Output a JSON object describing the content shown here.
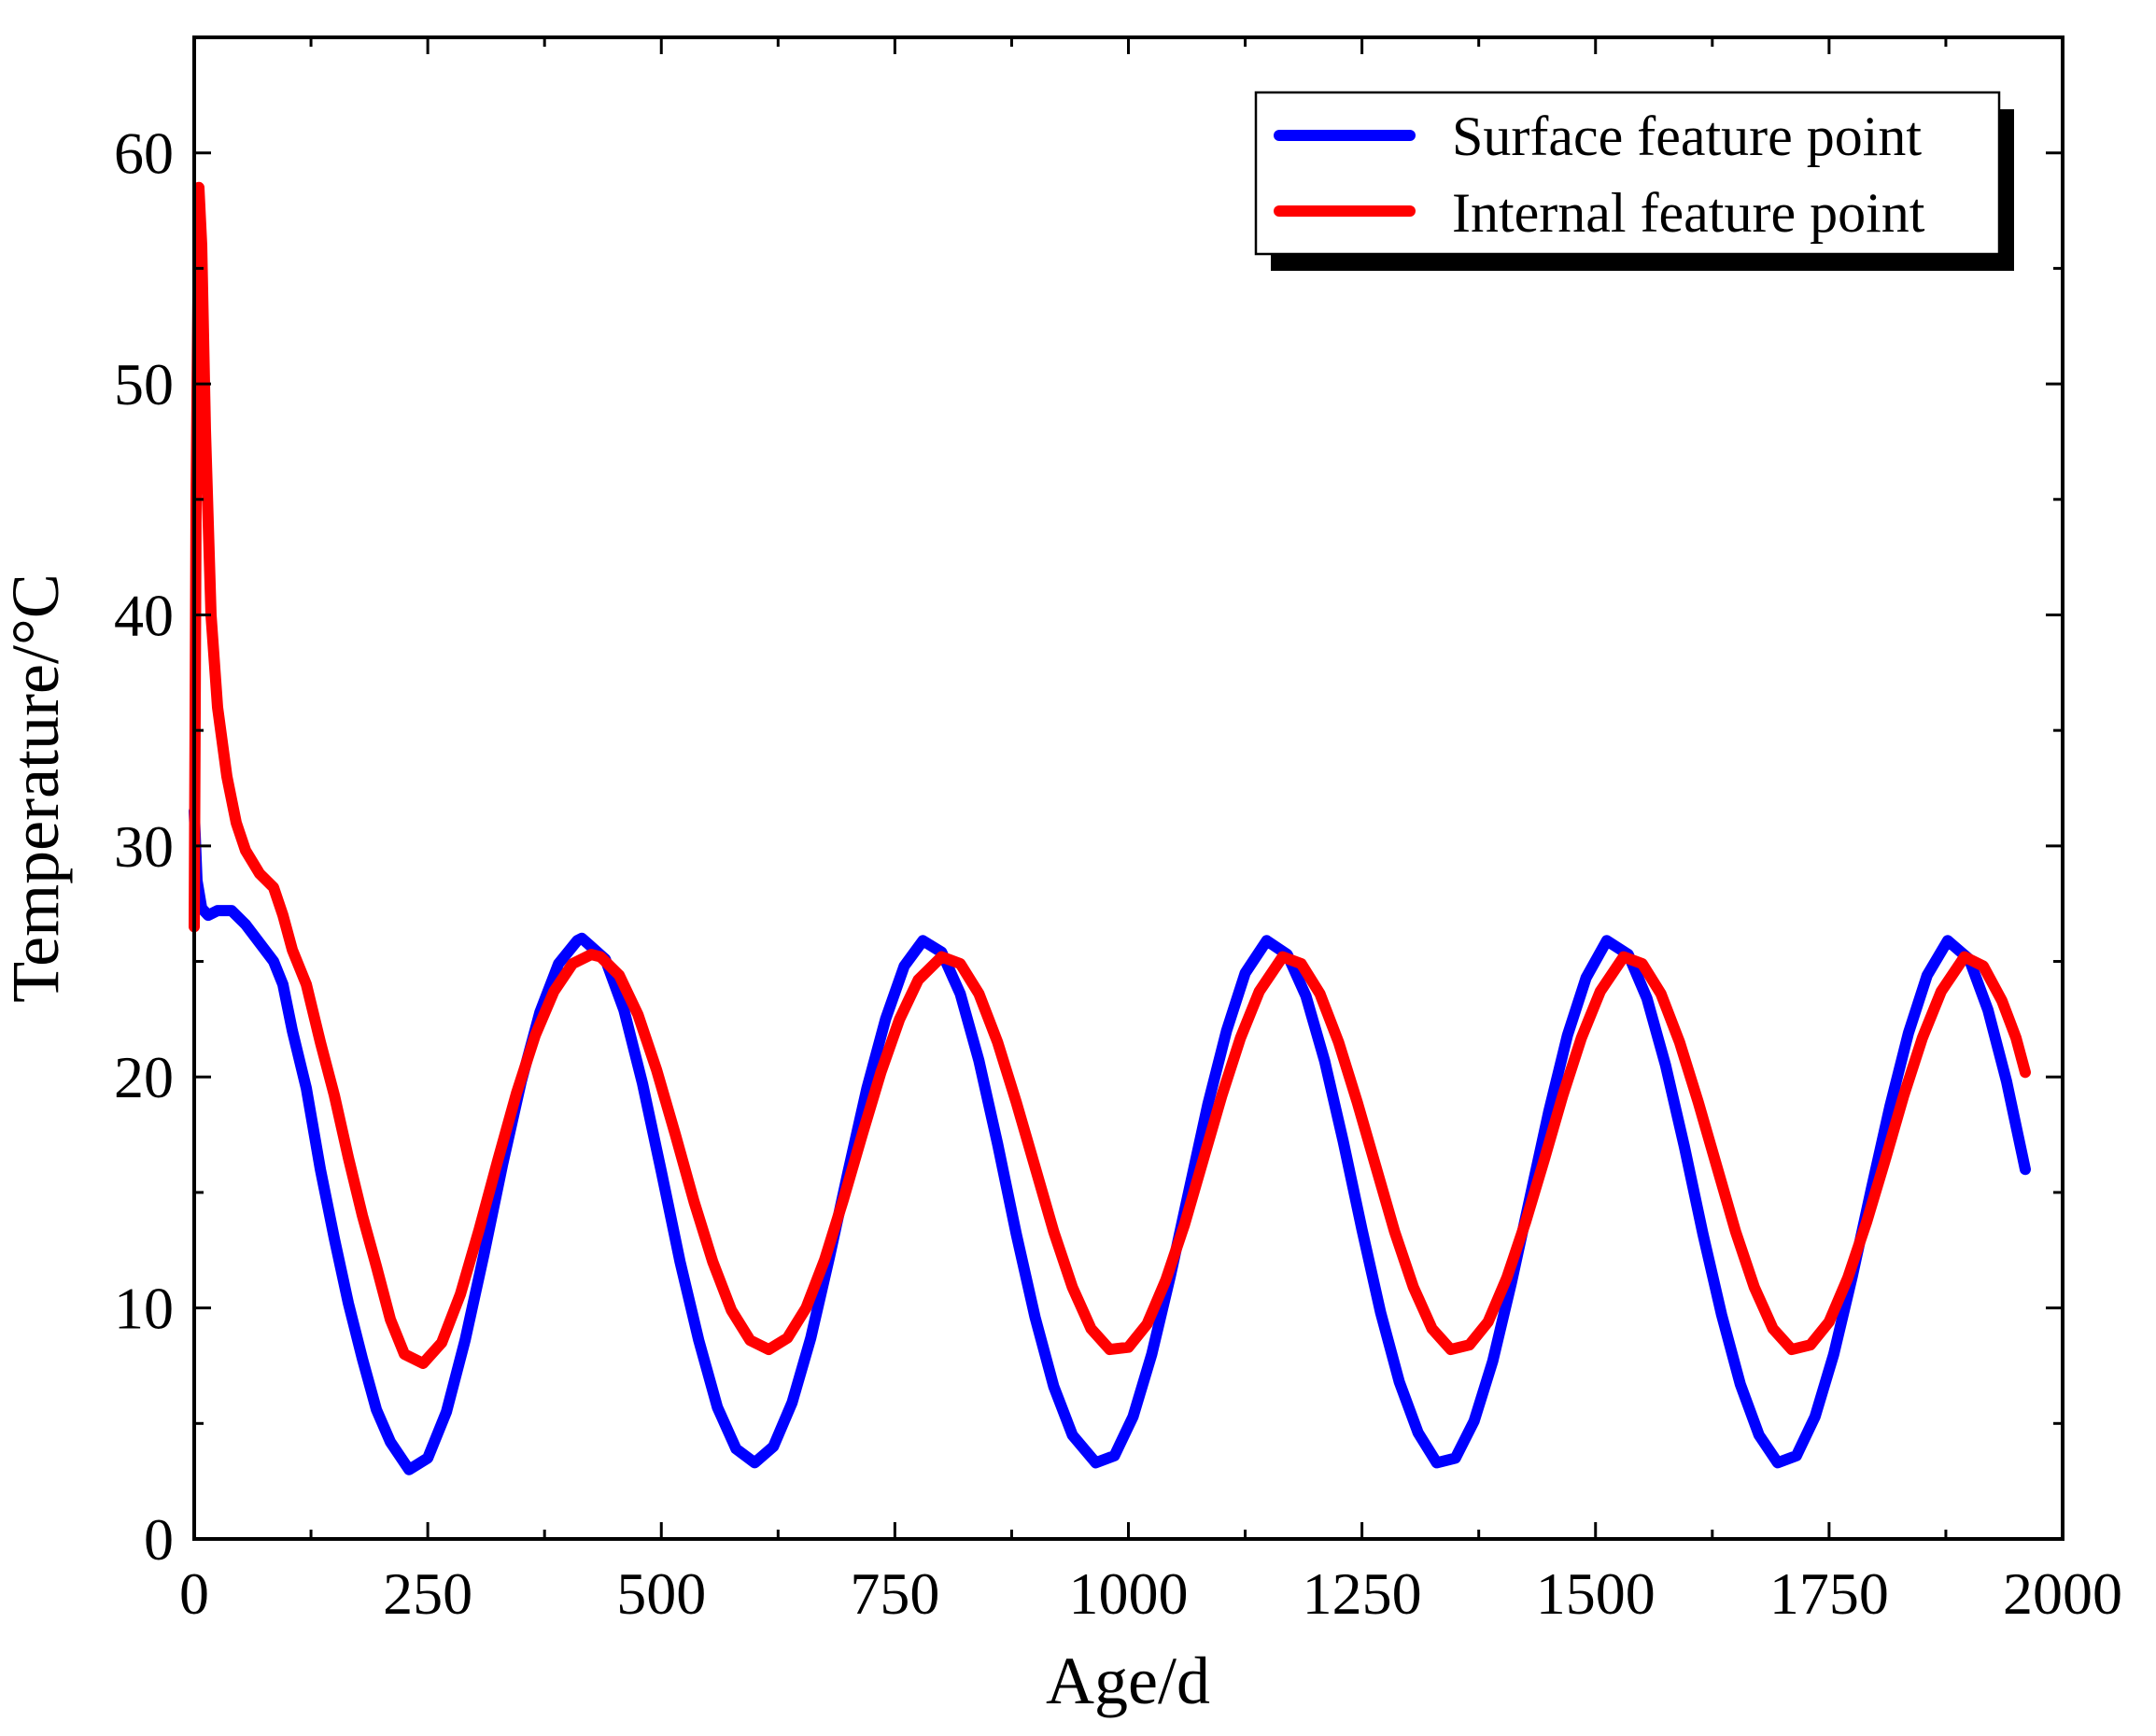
{
  "chart_data": {
    "type": "line",
    "title": "",
    "xlabel": "Age/d",
    "ylabel": "Temperature/°C",
    "xlim": [
      0,
      2000
    ],
    "ylim": [
      0,
      65
    ],
    "xticks": [
      0,
      250,
      500,
      750,
      1000,
      1250,
      1500,
      1750,
      2000
    ],
    "yticks": [
      0,
      10,
      20,
      30,
      40,
      50,
      60
    ],
    "grid": false,
    "legend_position": "top-right",
    "series": [
      {
        "name": "Surface feature point",
        "color": "#0000ff",
        "x": [
          0,
          3,
          8,
          15,
          25,
          40,
          55,
          70,
          85,
          95,
          105,
          120,
          135,
          150,
          165,
          180,
          195,
          210,
          230,
          250,
          270,
          290,
          310,
          330,
          350,
          370,
          390,
          410,
          415,
          440,
          460,
          480,
          500,
          520,
          540,
          560,
          580,
          600,
          620,
          640,
          660,
          680,
          700,
          720,
          740,
          760,
          780,
          800,
          820,
          840,
          860,
          880,
          900,
          920,
          940,
          965,
          985,
          1005,
          1025,
          1045,
          1065,
          1085,
          1105,
          1125,
          1148,
          1170,
          1190,
          1210,
          1230,
          1250,
          1270,
          1290,
          1310,
          1330,
          1350,
          1370,
          1390,
          1410,
          1430,
          1450,
          1470,
          1490,
          1512,
          1535,
          1555,
          1575,
          1595,
          1615,
          1635,
          1655,
          1675,
          1695,
          1715,
          1735,
          1755,
          1775,
          1795,
          1815,
          1835,
          1855,
          1877,
          1900,
          1920,
          1940,
          1960
        ],
        "values": [
          31.5,
          28.5,
          27.3,
          27.0,
          27.2,
          27.2,
          26.6,
          25.8,
          25.0,
          24.0,
          22.0,
          19.5,
          16.0,
          13.0,
          10.2,
          7.8,
          5.6,
          4.2,
          3.0,
          3.5,
          5.5,
          8.6,
          12.3,
          16.2,
          19.8,
          22.8,
          24.9,
          25.9,
          26.0,
          25.1,
          22.9,
          19.7,
          15.9,
          12.0,
          8.6,
          5.7,
          3.9,
          3.3,
          4.0,
          5.9,
          8.7,
          12.2,
          15.9,
          19.5,
          22.5,
          24.8,
          25.9,
          25.4,
          23.6,
          20.7,
          17.1,
          13.2,
          9.6,
          6.6,
          4.5,
          3.3,
          3.6,
          5.3,
          8.0,
          11.4,
          15.1,
          18.8,
          22.0,
          24.5,
          25.9,
          25.3,
          23.5,
          20.7,
          17.2,
          13.4,
          9.8,
          6.8,
          4.6,
          3.3,
          3.5,
          5.1,
          7.7,
          11.1,
          14.8,
          18.5,
          21.8,
          24.3,
          25.9,
          25.3,
          23.4,
          20.5,
          17.0,
          13.2,
          9.7,
          6.7,
          4.5,
          3.3,
          3.6,
          5.3,
          8.0,
          11.4,
          15.1,
          18.7,
          21.9,
          24.4,
          25.9,
          25.1,
          22.9,
          19.8,
          16.0
        ]
      },
      {
        "name": "Internal feature point",
        "color": "#ff0000",
        "x": [
          0,
          2,
          5,
          8,
          12,
          18,
          25,
          35,
          45,
          55,
          70,
          85,
          95,
          105,
          120,
          135,
          150,
          165,
          180,
          195,
          210,
          225,
          245,
          265,
          285,
          305,
          325,
          345,
          365,
          385,
          405,
          425,
          435,
          455,
          475,
          495,
          515,
          535,
          555,
          575,
          595,
          615,
          635,
          655,
          675,
          695,
          715,
          735,
          755,
          775,
          800,
          820,
          840,
          860,
          880,
          900,
          920,
          940,
          960,
          980,
          1000,
          1020,
          1040,
          1060,
          1080,
          1100,
          1120,
          1140,
          1165,
          1185,
          1205,
          1225,
          1245,
          1265,
          1285,
          1305,
          1325,
          1345,
          1365,
          1385,
          1405,
          1425,
          1445,
          1465,
          1485,
          1505,
          1530,
          1550,
          1570,
          1590,
          1610,
          1630,
          1650,
          1670,
          1690,
          1710,
          1730,
          1750,
          1770,
          1790,
          1810,
          1830,
          1850,
          1870,
          1895,
          1915,
          1935,
          1950,
          1960
        ],
        "values": [
          26.5,
          45.0,
          58.5,
          56.0,
          48.0,
          40.0,
          36.0,
          33.0,
          31.0,
          29.8,
          28.8,
          28.2,
          27.0,
          25.5,
          24.0,
          21.5,
          19.2,
          16.5,
          14.0,
          11.8,
          9.5,
          8.0,
          7.6,
          8.5,
          10.6,
          13.4,
          16.4,
          19.3,
          21.8,
          23.7,
          24.9,
          25.3,
          25.2,
          24.4,
          22.7,
          20.3,
          17.5,
          14.6,
          12.0,
          9.9,
          8.6,
          8.2,
          8.7,
          10.0,
          12.1,
          14.7,
          17.5,
          20.2,
          22.5,
          24.2,
          25.2,
          24.9,
          23.6,
          21.5,
          18.9,
          16.1,
          13.3,
          10.9,
          9.1,
          8.2,
          8.3,
          9.3,
          11.2,
          13.6,
          16.4,
          19.2,
          21.7,
          23.7,
          25.2,
          24.9,
          23.6,
          21.5,
          18.9,
          16.1,
          13.3,
          10.9,
          9.1,
          8.2,
          8.4,
          9.4,
          11.3,
          13.7,
          16.4,
          19.2,
          21.7,
          23.7,
          25.2,
          24.9,
          23.6,
          21.5,
          18.9,
          16.1,
          13.3,
          10.9,
          9.1,
          8.2,
          8.4,
          9.4,
          11.3,
          13.7,
          16.4,
          19.2,
          21.7,
          23.7,
          25.2,
          24.8,
          23.3,
          21.7,
          20.2
        ]
      }
    ]
  }
}
